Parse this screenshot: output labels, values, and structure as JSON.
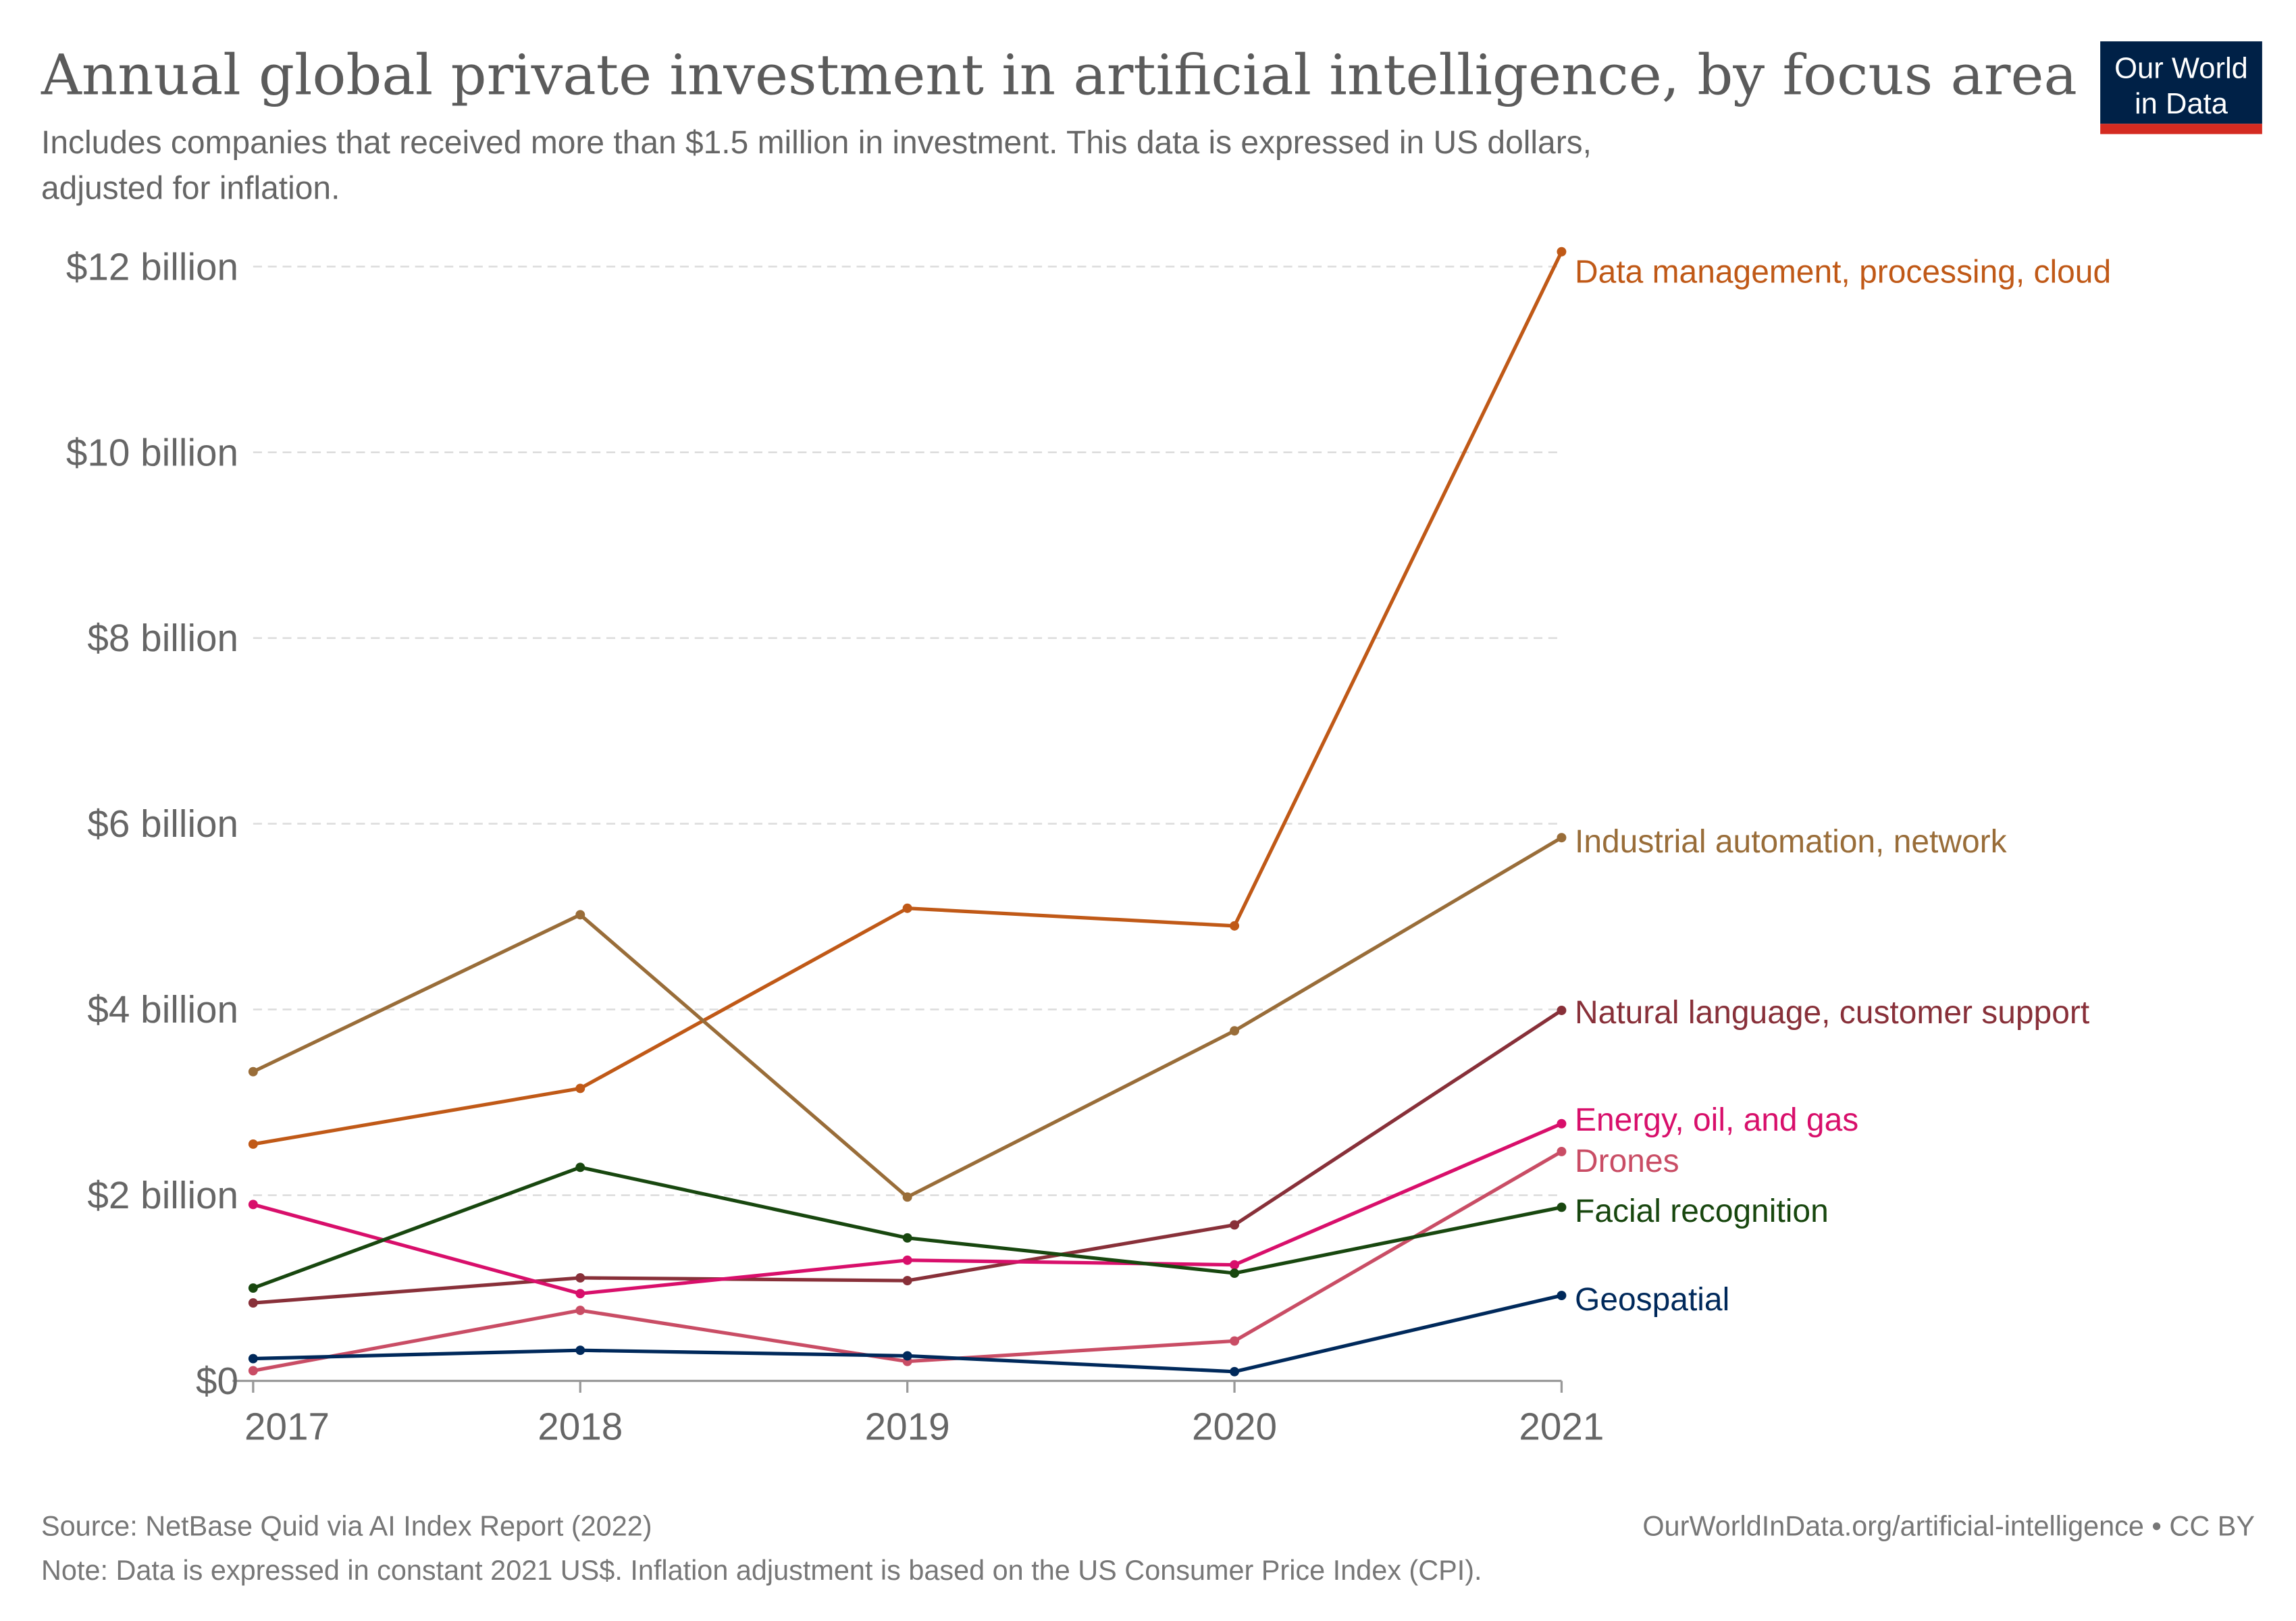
{
  "header": {
    "title": "Annual global private investment in artificial intelligence, by focus area",
    "subtitle_line1": "Includes companies that received more than $1.5 million in investment. This data is expressed in US dollars,",
    "subtitle_line2": "adjusted for inflation.",
    "logo_line1": "Our World",
    "logo_line2": "in Data",
    "logo_colors": {
      "background": "#002147",
      "stripe": "#d42b21"
    }
  },
  "footer": {
    "source": "Source: NetBase Quid via AI Index Report (2022)",
    "license": "OurWorldInData.org/artificial-intelligence • CC BY",
    "note": "Note: Data is expressed in constant 2021 US$. Inflation adjustment is based on the US Consumer Price Index (CPI)."
  },
  "chart_data": {
    "type": "line",
    "title": "Annual global private investment in artificial intelligence, by focus area",
    "x": [
      2017,
      2018,
      2019,
      2020,
      2021
    ],
    "x_tick_labels": [
      "2017",
      "2018",
      "2019",
      "2020",
      "2021"
    ],
    "y_tick_labels": [
      "$0",
      "$2 billion",
      "$4 billion",
      "$6 billion",
      "$8 billion",
      "$10 billion",
      "$12 billion"
    ],
    "y_ticks": [
      0,
      2,
      4,
      6,
      8,
      10,
      12
    ],
    "ylim": [
      0,
      12
    ],
    "y_unit": "billion US$",
    "grid": "horizontal dashed",
    "legend": "right, inline labels at line ends",
    "series": [
      {
        "name": "Data management, processing, cloud",
        "color": "#c05917",
        "values": [
          2.55,
          3.15,
          5.09,
          4.9,
          12.16
        ]
      },
      {
        "name": "Industrial automation, network",
        "color": "#996d39",
        "values": [
          3.33,
          5.02,
          1.98,
          3.77,
          5.85
        ]
      },
      {
        "name": "Natural language, customer support",
        "color": "#883039",
        "values": [
          0.84,
          1.11,
          1.08,
          1.68,
          3.99
        ]
      },
      {
        "name": "Energy, oil, and gas",
        "color": "#d80f6b",
        "values": [
          1.9,
          0.94,
          1.3,
          1.25,
          2.77
        ]
      },
      {
        "name": "Drones",
        "color": "#c94d65",
        "values": [
          0.11,
          0.76,
          0.21,
          0.43,
          2.47
        ]
      },
      {
        "name": "Facial recognition",
        "color": "#18470f",
        "values": [
          1.0,
          2.3,
          1.54,
          1.16,
          1.87
        ]
      },
      {
        "name": "Geospatial",
        "color": "#00295b",
        "values": [
          0.24,
          0.33,
          0.27,
          0.1,
          0.92
        ]
      }
    ]
  }
}
